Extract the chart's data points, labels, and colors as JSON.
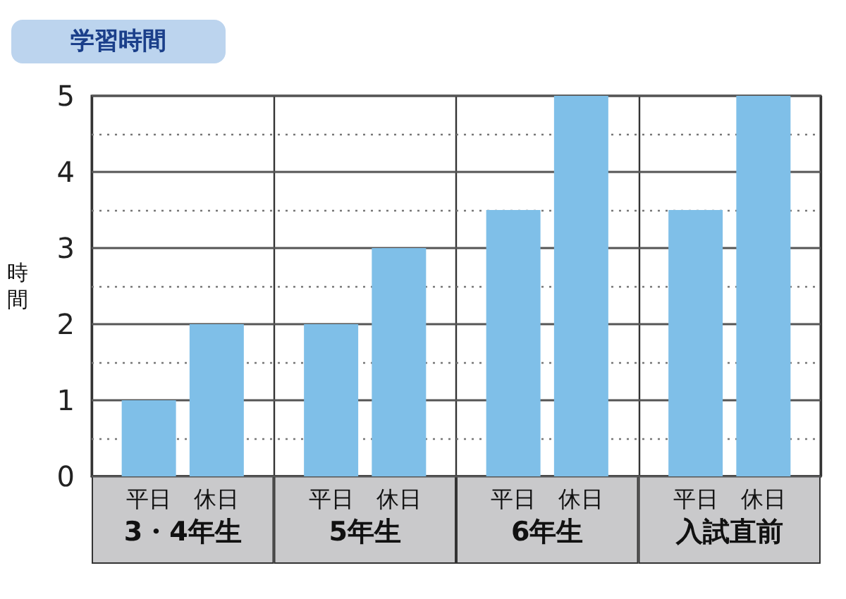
{
  "chart_data": {
    "type": "bar",
    "title": "学習時間",
    "ylabel": "時間",
    "categories": [
      "3・4年生",
      "5年生",
      "6年生",
      "入試直前"
    ],
    "series": [
      {
        "name": "平日",
        "color": "#7fbfe8",
        "values": [
          1,
          2,
          3.5,
          3.5
        ]
      },
      {
        "name": "休日",
        "color": "#7fbfe8",
        "values": [
          2,
          3,
          5,
          5
        ]
      }
    ],
    "ylim": [
      0,
      5
    ],
    "yticks": [
      0,
      {
        "value": 0.5,
        "label": null
      },
      1,
      {
        "value": 1.5,
        "label": null
      },
      2,
      {
        "value": 2.5,
        "label": null
      },
      3,
      {
        "value": 3.5,
        "label": null
      },
      4,
      {
        "value": 4.5,
        "label": null
      },
      5
    ],
    "grid": true,
    "legend": false
  }
}
